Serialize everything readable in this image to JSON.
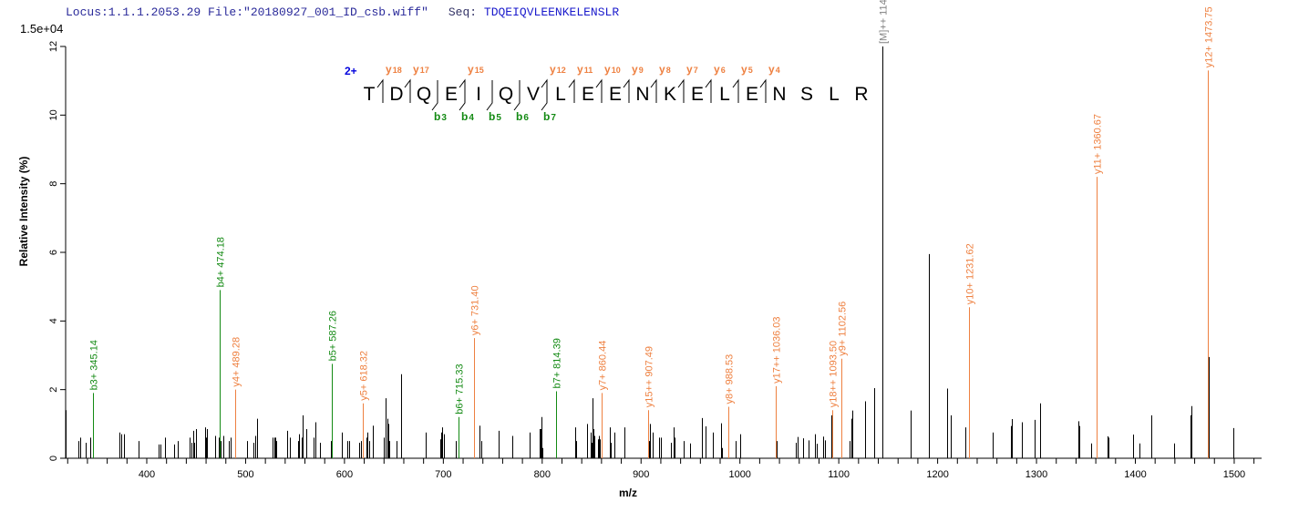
{
  "header": {
    "locus_file": "Locus:1.1.1.2053.29 File:\"20180927_001_ID_csb.wiff\"",
    "seq_label": "Seq:",
    "seq_value": "TDQEIQVLEENKELENSLR"
  },
  "scale_label": "1.5e+04",
  "colors": {
    "b_ion": "#138a13",
    "y_ion": "#ee8040",
    "precursor": "#808080",
    "peak": "#000000",
    "charge": "#0000dd"
  },
  "annotation": {
    "charge": "2+",
    "residues": [
      "T",
      "D",
      "Q",
      "E",
      "I",
      "Q",
      "V",
      "L",
      "E",
      "E",
      "N",
      "K",
      "E",
      "L",
      "E",
      "N",
      "S",
      "L",
      "R"
    ],
    "y_ions": [
      {
        "label": "y",
        "num": "18",
        "cut": 1
      },
      {
        "label": "y",
        "num": "17",
        "cut": 2
      },
      {
        "label": "y",
        "num": "15",
        "cut": 4
      },
      {
        "label": "y",
        "num": "12",
        "cut": 7
      },
      {
        "label": "y",
        "num": "11",
        "cut": 8
      },
      {
        "label": "y",
        "num": "10",
        "cut": 9
      },
      {
        "label": "y",
        "num": "9",
        "cut": 10
      },
      {
        "label": "y",
        "num": "8",
        "cut": 11
      },
      {
        "label": "y",
        "num": "7",
        "cut": 12
      },
      {
        "label": "y",
        "num": "6",
        "cut": 13
      },
      {
        "label": "y",
        "num": "5",
        "cut": 14
      },
      {
        "label": "y",
        "num": "4",
        "cut": 15
      }
    ],
    "b_ions": [
      {
        "label": "b",
        "num": "3",
        "cut": 3
      },
      {
        "label": "b",
        "num": "4",
        "cut": 4
      },
      {
        "label": "b",
        "num": "5",
        "cut": 5
      },
      {
        "label": "b",
        "num": "6",
        "cut": 6
      },
      {
        "label": "b",
        "num": "7",
        "cut": 7
      }
    ]
  },
  "chart_data": {
    "type": "bar",
    "xlabel": "m/z",
    "ylabel": "Relative  Intensity (%)",
    "xlim": [
      313,
      1528
    ],
    "ylim": [
      0,
      12
    ],
    "x_ticks": [
      400,
      500,
      600,
      700,
      800,
      900,
      1000,
      1100,
      1200,
      1300,
      1400,
      1500
    ],
    "y_ticks": [
      0,
      2,
      4,
      6,
      8,
      10,
      12
    ],
    "labeled_peaks": [
      {
        "label": "b3+ 345.14",
        "mz": 345.14,
        "intensity": 1.9,
        "type": "b"
      },
      {
        "label": "b4+ 474.18",
        "mz": 474.18,
        "intensity": 4.9,
        "type": "b"
      },
      {
        "label": "y4+ 489.28",
        "mz": 489.28,
        "intensity": 2.0,
        "type": "y"
      },
      {
        "label": "b5+ 587.26",
        "mz": 587.26,
        "intensity": 2.75,
        "type": "b"
      },
      {
        "label": "y5+ 618.32",
        "mz": 618.32,
        "intensity": 1.6,
        "type": "y"
      },
      {
        "label": "b6+ 715.33",
        "mz": 715.33,
        "intensity": 1.2,
        "type": "b"
      },
      {
        "label": "y6+ 731.40",
        "mz": 731.4,
        "intensity": 3.5,
        "type": "y"
      },
      {
        "label": "b7+ 814.39",
        "mz": 814.39,
        "intensity": 1.95,
        "type": "b"
      },
      {
        "label": "y7+ 860.44",
        "mz": 860.44,
        "intensity": 1.9,
        "type": "y"
      },
      {
        "label": "y15++ 907.49",
        "mz": 907.49,
        "intensity": 1.4,
        "type": "y"
      },
      {
        "label": "y8+ 988.53",
        "mz": 988.53,
        "intensity": 1.5,
        "type": "y"
      },
      {
        "label": "y17++ 1036.03",
        "mz": 1036.03,
        "intensity": 2.1,
        "type": "y"
      },
      {
        "label": "y18++ 1093.50",
        "mz": 1093.5,
        "intensity": 1.4,
        "type": "y"
      },
      {
        "label": "y9+ 1102.56",
        "mz": 1102.56,
        "intensity": 2.9,
        "type": "y"
      },
      {
        "label": "[M]++ 1144.08",
        "mz": 1144.08,
        "intensity": 12.0,
        "type": "precursor"
      },
      {
        "label": "y10+ 1231.62",
        "mz": 1231.62,
        "intensity": 4.4,
        "type": "y"
      },
      {
        "label": "y11+ 1360.67",
        "mz": 1360.67,
        "intensity": 8.2,
        "type": "y"
      },
      {
        "label": "y12+ 1473.75",
        "mz": 1473.75,
        "intensity": 11.3,
        "type": "y"
      }
    ],
    "peaks": [
      [
        318,
        1.4
      ],
      [
        331,
        0.5
      ],
      [
        333,
        0.6
      ],
      [
        338,
        0.45
      ],
      [
        343,
        0.6
      ],
      [
        372,
        0.75
      ],
      [
        374,
        0.7
      ],
      [
        377,
        0.7
      ],
      [
        392,
        0.5
      ],
      [
        412,
        0.4
      ],
      [
        414,
        0.4
      ],
      [
        418,
        0.6
      ],
      [
        428,
        0.4
      ],
      [
        431,
        0.5
      ],
      [
        443,
        0.6
      ],
      [
        445,
        0.45
      ],
      [
        447,
        0.8
      ],
      [
        448,
        0.45
      ],
      [
        450,
        0.85
      ],
      [
        459,
        0.9
      ],
      [
        460,
        0.6
      ],
      [
        461,
        0.85
      ],
      [
        469,
        0.65
      ],
      [
        473,
        0.6
      ],
      [
        475,
        0.5
      ],
      [
        477,
        0.65
      ],
      [
        483,
        0.5
      ],
      [
        485,
        0.6
      ],
      [
        501,
        0.5
      ],
      [
        508,
        0.45
      ],
      [
        510,
        0.65
      ],
      [
        512,
        1.15
      ],
      [
        527,
        0.6
      ],
      [
        529,
        0.6
      ],
      [
        530,
        0.6
      ],
      [
        531,
        0.5
      ],
      [
        542,
        0.8
      ],
      [
        545,
        0.6
      ],
      [
        553,
        0.5
      ],
      [
        554,
        0.7
      ],
      [
        557,
        0.6
      ],
      [
        558,
        1.25
      ],
      [
        561,
        0.85
      ],
      [
        569,
        0.6
      ],
      [
        571,
        1.05
      ],
      [
        575,
        0.45
      ],
      [
        586,
        0.5
      ],
      [
        597,
        0.75
      ],
      [
        603,
        0.5
      ],
      [
        605,
        0.5
      ],
      [
        615,
        0.45
      ],
      [
        617,
        0.5
      ],
      [
        622,
        0.6
      ],
      [
        623,
        0.75
      ],
      [
        625,
        0.5
      ],
      [
        629,
        0.95
      ],
      [
        640,
        0.6
      ],
      [
        642,
        1.75
      ],
      [
        643,
        1.15
      ],
      [
        644,
        1.0
      ],
      [
        645,
        0.5
      ],
      [
        653,
        0.5
      ],
      [
        657,
        2.45
      ],
      [
        682,
        0.75
      ],
      [
        697,
        0.55
      ],
      [
        698,
        0.75
      ],
      [
        699,
        0.9
      ],
      [
        701,
        0.7
      ],
      [
        713,
        0.5
      ],
      [
        737,
        0.95
      ],
      [
        738,
        0.5
      ],
      [
        756,
        0.8
      ],
      [
        770,
        0.65
      ],
      [
        787,
        0.75
      ],
      [
        797,
        0.85
      ],
      [
        798,
        0.85
      ],
      [
        799,
        1.2
      ],
      [
        800,
        0.3
      ],
      [
        833,
        0.9
      ],
      [
        834,
        0.5
      ],
      [
        845,
        1.0
      ],
      [
        849,
        0.75
      ],
      [
        850,
        0.45
      ],
      [
        851,
        1.75
      ],
      [
        852,
        0.85
      ],
      [
        853,
        0.65
      ],
      [
        856,
        0.55
      ],
      [
        857,
        0.65
      ],
      [
        858,
        0.55
      ],
      [
        868,
        0.9
      ],
      [
        869,
        0.45
      ],
      [
        873,
        0.75
      ],
      [
        883,
        0.9
      ],
      [
        908,
        0.5
      ],
      [
        909,
        1.0
      ],
      [
        912,
        0.75
      ],
      [
        918,
        0.6
      ],
      [
        920,
        0.6
      ],
      [
        930,
        0.45
      ],
      [
        933,
        0.9
      ],
      [
        934,
        0.6
      ],
      [
        943,
        0.5
      ],
      [
        949.5,
        0.43
      ],
      [
        961.5,
        1.17
      ],
      [
        962,
        0.6
      ],
      [
        965,
        0.93
      ],
      [
        972.6,
        0.75
      ],
      [
        981,
        1.02
      ],
      [
        982,
        0.3
      ],
      [
        995.6,
        0.5
      ],
      [
        1000,
        0.7
      ],
      [
        1037,
        0.5
      ],
      [
        1056.5,
        0.45
      ],
      [
        1058,
        0.62
      ],
      [
        1063.8,
        0.58
      ],
      [
        1069,
        0.52
      ],
      [
        1076,
        0.7
      ],
      [
        1077.5,
        0.42
      ],
      [
        1084,
        0.63
      ],
      [
        1086,
        0.52
      ],
      [
        1092.5,
        1.25
      ],
      [
        1093,
        0.4
      ],
      [
        1111,
        0.5
      ],
      [
        1112.7,
        1.15
      ],
      [
        1113.5,
        1.39
      ],
      [
        1126.6,
        1.66
      ],
      [
        1135.6,
        2.04
      ],
      [
        1136,
        2.04
      ],
      [
        1144,
        11.9
      ],
      [
        1172.6,
        1.39
      ],
      [
        1173,
        0.4
      ],
      [
        1191,
        5.95
      ],
      [
        1209.6,
        2.03
      ],
      [
        1210,
        0.75
      ],
      [
        1213,
        1.25
      ],
      [
        1228,
        0.9
      ],
      [
        1255.6,
        0.75
      ],
      [
        1274,
        0.94
      ],
      [
        1275,
        1.14
      ],
      [
        1285,
        1.05
      ],
      [
        1298,
        1.12
      ],
      [
        1303.6,
        1.6
      ],
      [
        1342,
        1.08
      ],
      [
        1343,
        0.94
      ],
      [
        1355,
        0.43
      ],
      [
        1361,
        0.75
      ],
      [
        1372,
        0.64
      ],
      [
        1373,
        0.6
      ],
      [
        1397.7,
        0.69
      ],
      [
        1404,
        0.43
      ],
      [
        1416,
        1.25
      ],
      [
        1439,
        0.43
      ],
      [
        1455.7,
        1.25
      ],
      [
        1457,
        1.52
      ],
      [
        1474,
        2.95
      ],
      [
        1499,
        0.88
      ]
    ]
  }
}
